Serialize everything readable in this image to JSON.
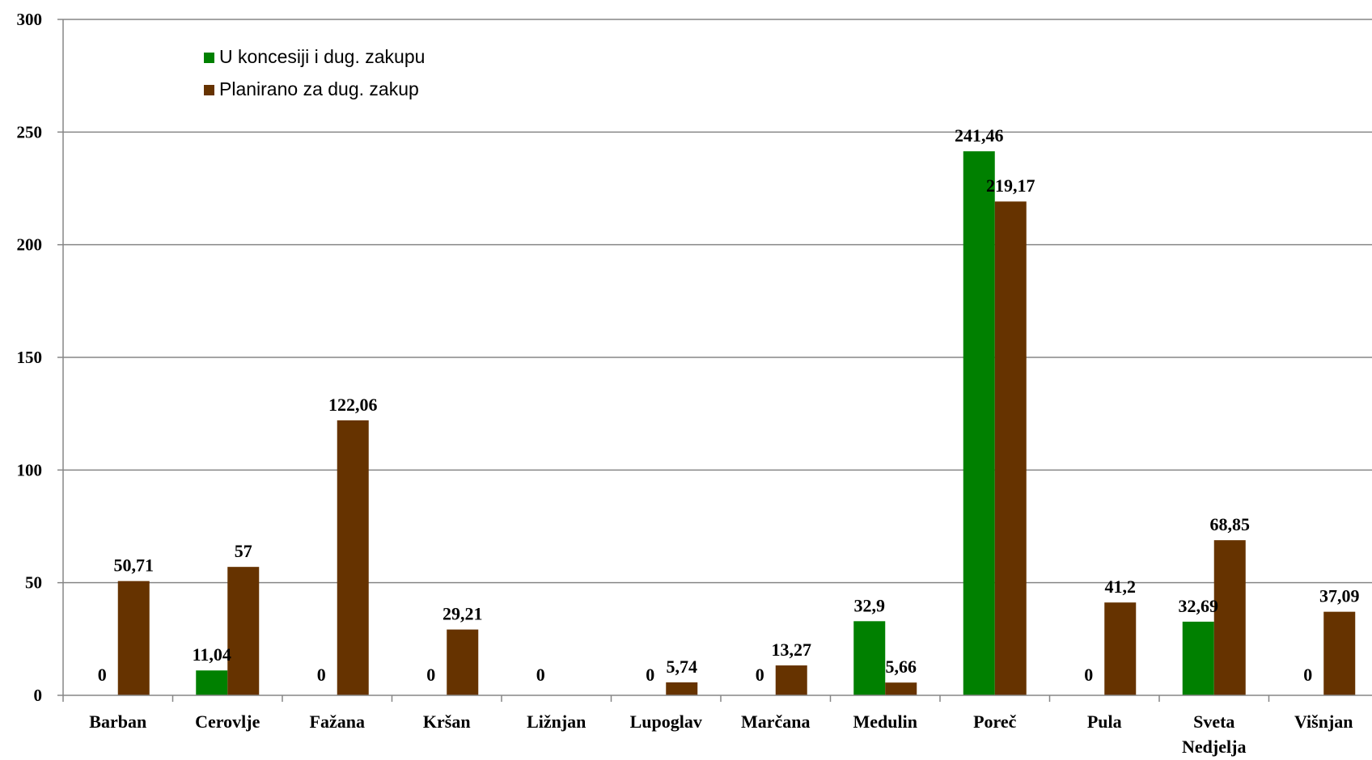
{
  "chart_data": {
    "type": "bar",
    "title": "",
    "xlabel": "",
    "ylabel": "",
    "ylim": [
      0,
      300
    ],
    "yticks": [
      "0",
      "50",
      "100",
      "150",
      "200",
      "250",
      "300"
    ],
    "grid": true,
    "legend_position": "top-left",
    "categories": [
      [
        "Barban"
      ],
      [
        "Cerovlje"
      ],
      [
        "Fažana"
      ],
      [
        "Kršan"
      ],
      [
        "Ližnjan"
      ],
      [
        "Lupoglav"
      ],
      [
        "Marčana"
      ],
      [
        "Medulin"
      ],
      [
        "Poreč"
      ],
      [
        "Pula"
      ],
      [
        "Sveta",
        "Nedjelja"
      ],
      [
        "Višnjan"
      ]
    ],
    "series": [
      {
        "name": "U koncesiji i dug. zakupu",
        "color": "#008000",
        "values": [
          0,
          11.04,
          0,
          0,
          0,
          0,
          0,
          32.9,
          241.46,
          0,
          32.69,
          0
        ],
        "labels": [
          "0",
          "11,04",
          "0",
          "0",
          "0",
          "0",
          "0",
          "32,9",
          "241,46",
          "0",
          "32,69",
          "0"
        ]
      },
      {
        "name": "Planirano za dug. zakup",
        "color": "#663300",
        "values": [
          50.71,
          57,
          122.06,
          29.21,
          null,
          5.74,
          13.27,
          5.66,
          219.17,
          41.2,
          68.85,
          37.09
        ],
        "labels": [
          "50,71",
          "57",
          "122,06",
          "29,21",
          "",
          "5,74",
          "13,27",
          "5,66",
          "219,17",
          "41,2",
          "68,85",
          "37,09"
        ]
      }
    ]
  }
}
